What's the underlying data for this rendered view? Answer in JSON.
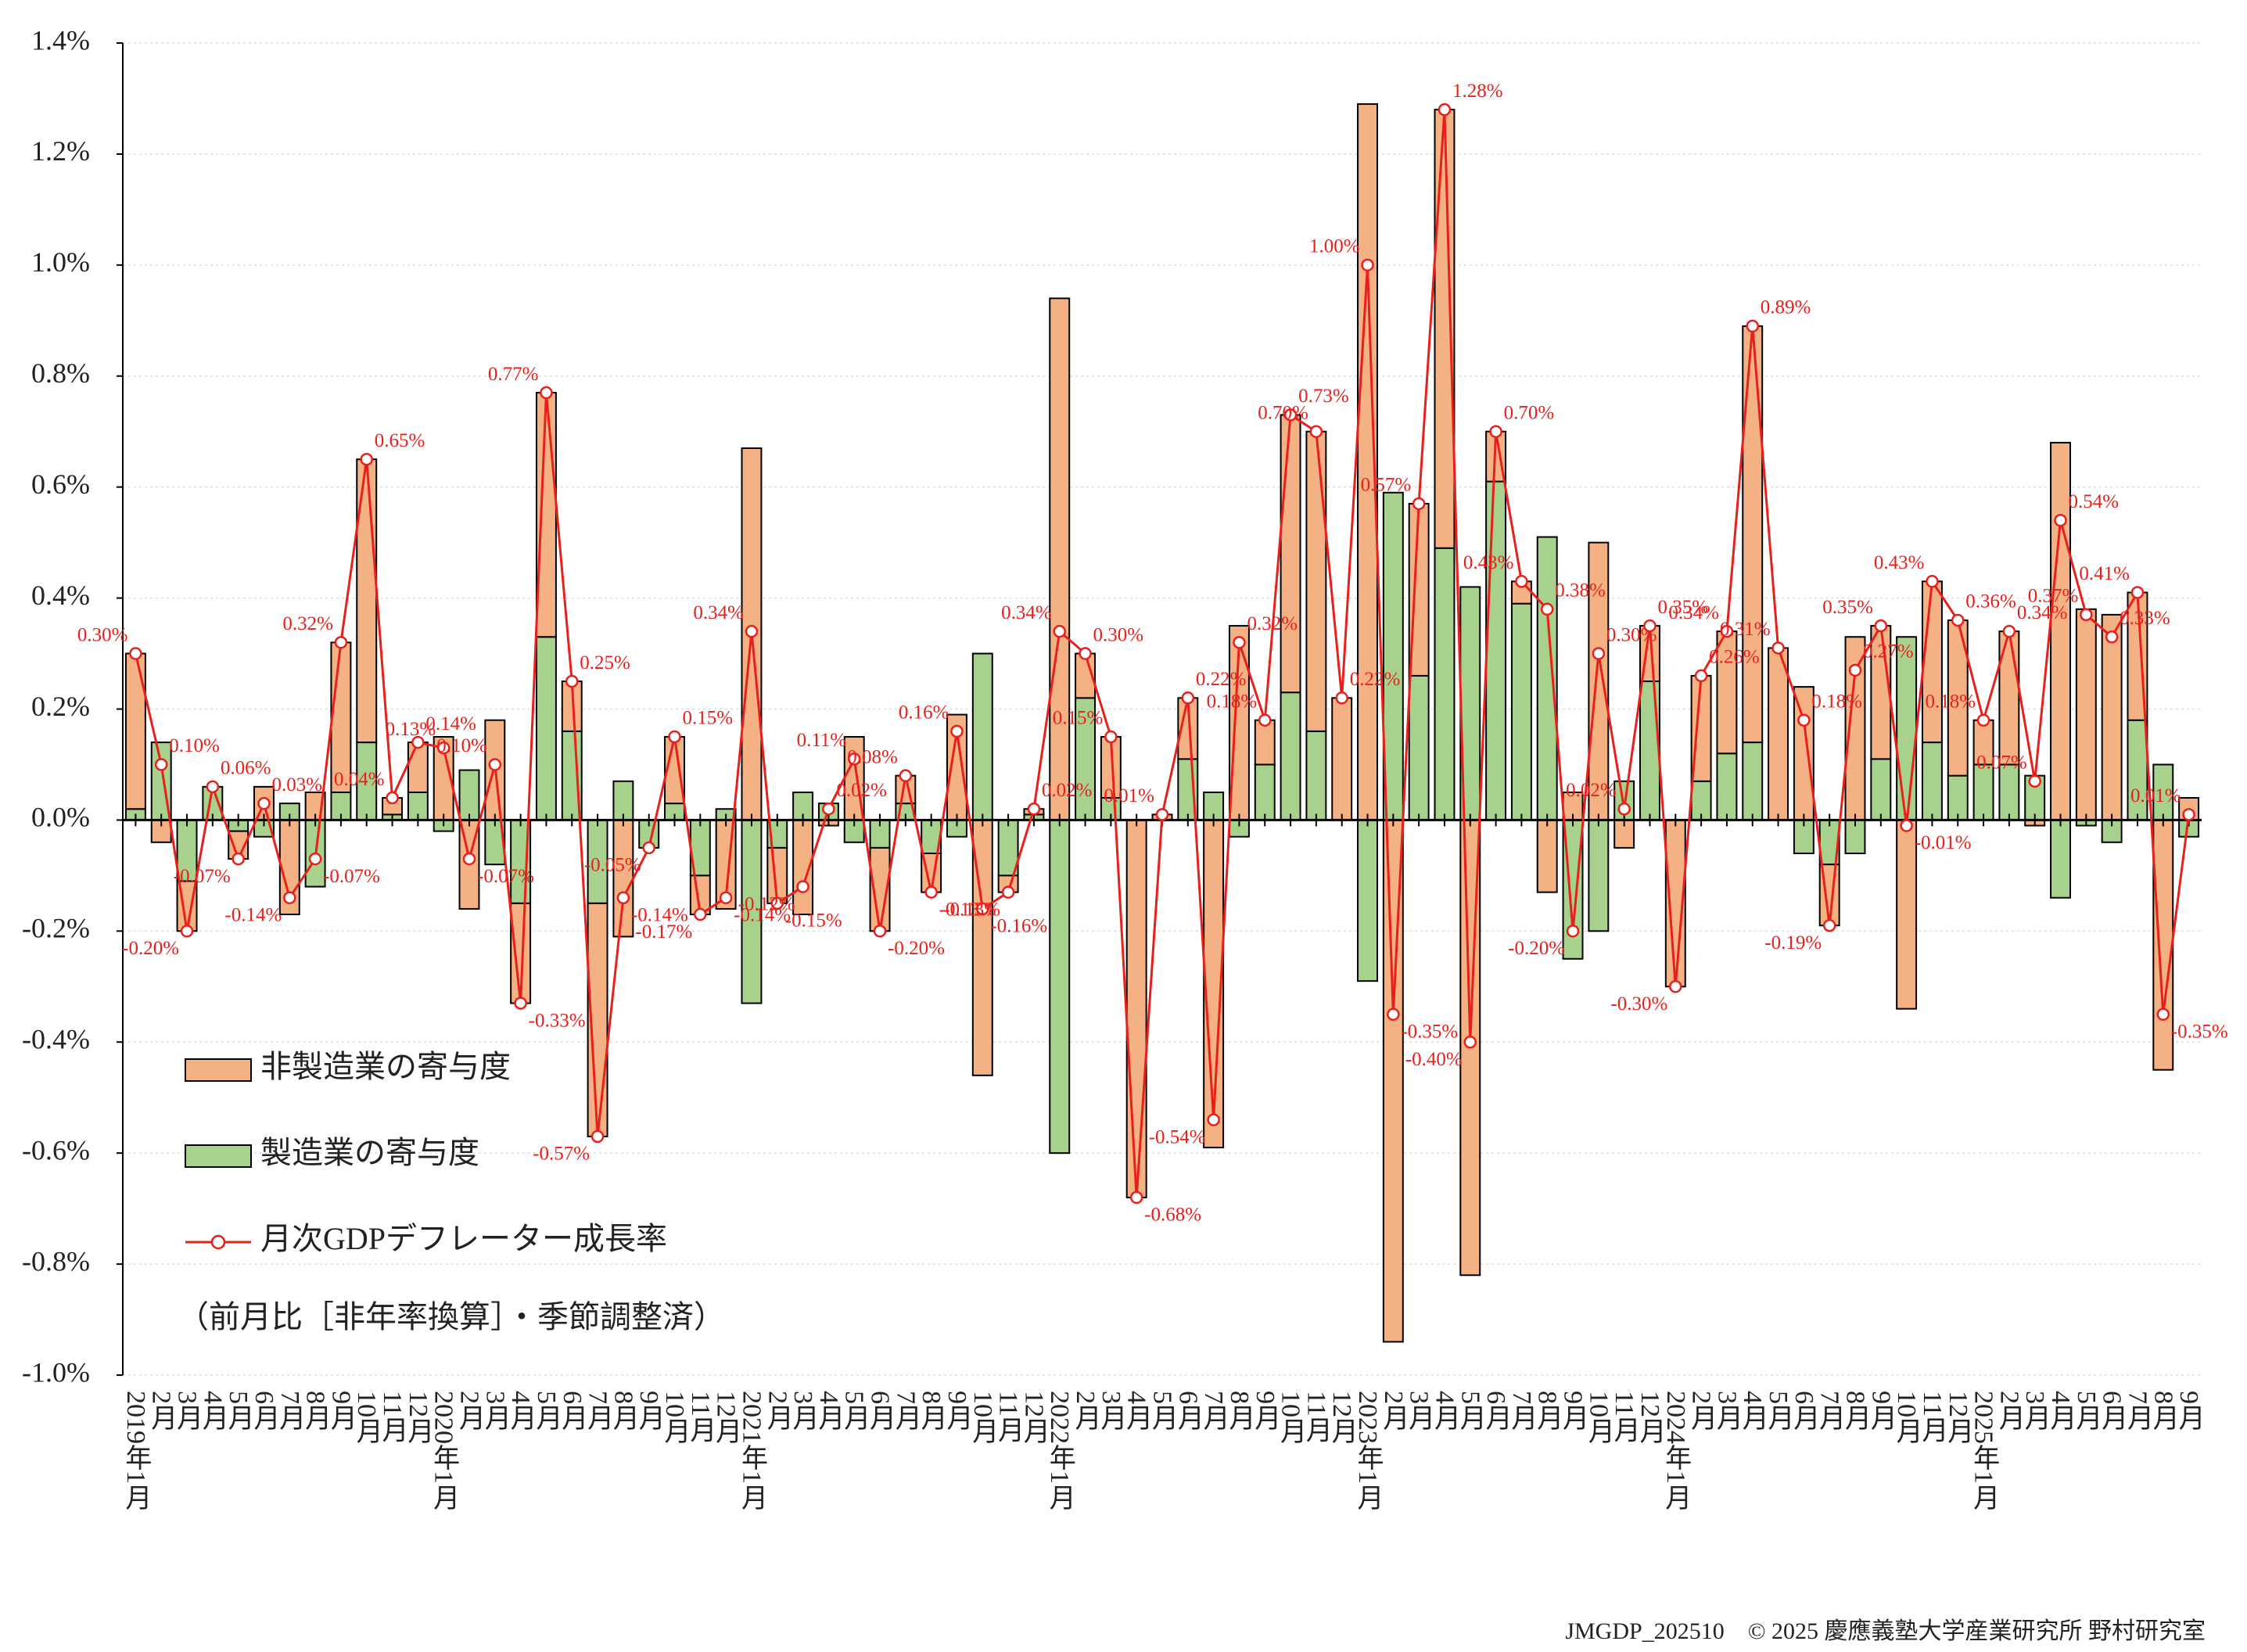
{
  "chart_data": {
    "type": "stacked_bar_line",
    "categories": [
      "2019年1月",
      "2月",
      "3月",
      "4月",
      "5月",
      "6月",
      "7月",
      "8月",
      "9月",
      "10月",
      "11月",
      "12月",
      "2020年1月",
      "2月",
      "3月",
      "4月",
      "5月",
      "6月",
      "7月",
      "8月",
      "9月",
      "10月",
      "11月",
      "12月",
      "2021年1月",
      "2月",
      "3月",
      "4月",
      "5月",
      "6月",
      "7月",
      "8月",
      "9月",
      "10月",
      "11月",
      "12月",
      "2022年1月",
      "2月",
      "3月",
      "4月",
      "5月",
      "6月",
      "7月",
      "8月",
      "9月",
      "10月",
      "11月",
      "12月",
      "2023年1月",
      "2月",
      "3月",
      "4月",
      "5月",
      "6月",
      "7月",
      "8月",
      "9月",
      "10月",
      "11月",
      "12月",
      "2024年1月",
      "2月",
      "3月",
      "4月",
      "5月",
      "6月",
      "7月",
      "8月",
      "9月",
      "10月",
      "11月",
      "12月",
      "2025年1月",
      "2月",
      "3月",
      "4月",
      "5月",
      "6月",
      "7月",
      "8月",
      "9月"
    ],
    "series": [
      {
        "name": "非製造業の寄与度",
        "kind": "bar",
        "color": "#f4b183",
        "values": [
          0.28,
          -0.04,
          -0.09,
          0.0,
          -0.05,
          0.06,
          -0.17,
          0.05,
          0.27,
          0.51,
          0.03,
          0.09,
          0.15,
          -0.16,
          0.18,
          -0.18,
          0.44,
          0.09,
          -0.42,
          -0.21,
          0.0,
          0.12,
          -0.07,
          -0.16,
          0.67,
          -0.1,
          -0.17,
          -0.01,
          0.15,
          -0.15,
          0.05,
          -0.07,
          0.19,
          -0.46,
          -0.03,
          0.01,
          0.94,
          0.08,
          0.11,
          -0.68,
          0.01,
          0.11,
          -0.59,
          0.35,
          0.08,
          0.5,
          0.54,
          0.22,
          1.29,
          -0.94,
          0.31,
          0.79,
          -0.82,
          0.09,
          0.04,
          -0.13,
          0.05,
          0.5,
          -0.05,
          0.1,
          -0.3,
          0.19,
          0.22,
          0.75,
          0.31,
          0.24,
          -0.11,
          0.33,
          0.24,
          -0.34,
          0.29,
          0.28,
          0.08,
          0.24,
          -0.01,
          0.68,
          0.38,
          0.37,
          0.23,
          -0.45,
          0.04
        ]
      },
      {
        "name": "製造業の寄与度",
        "kind": "bar",
        "color": "#a9d18e",
        "values": [
          0.02,
          0.14,
          -0.11,
          0.06,
          -0.02,
          -0.03,
          0.03,
          -0.12,
          0.05,
          0.14,
          0.01,
          0.05,
          -0.02,
          0.09,
          -0.08,
          -0.15,
          0.33,
          0.16,
          -0.15,
          0.07,
          -0.05,
          0.03,
          -0.1,
          0.02,
          -0.33,
          -0.05,
          0.05,
          0.03,
          -0.04,
          -0.05,
          0.03,
          -0.06,
          -0.03,
          0.3,
          -0.1,
          0.01,
          -0.6,
          0.22,
          0.04,
          0.0,
          0.0,
          0.11,
          0.05,
          -0.03,
          0.1,
          0.23,
          0.16,
          0.0,
          -0.29,
          0.59,
          0.26,
          0.49,
          0.42,
          0.61,
          0.39,
          0.51,
          -0.25,
          -0.2,
          0.07,
          0.25,
          0.0,
          0.07,
          0.12,
          0.14,
          0.0,
          -0.06,
          -0.08,
          -0.06,
          0.11,
          0.33,
          0.14,
          0.08,
          0.1,
          0.1,
          0.08,
          -0.14,
          -0.01,
          -0.04,
          0.18,
          0.1,
          -0.03
        ]
      },
      {
        "name": "月次GDPデフレーター成長率",
        "kind": "line",
        "color": "#e8201c",
        "values": [
          0.3,
          0.1,
          -0.2,
          0.06,
          -0.07,
          0.03,
          -0.14,
          -0.07,
          0.32,
          0.65,
          0.04,
          0.14,
          0.13,
          -0.07,
          0.1,
          -0.33,
          0.77,
          0.25,
          -0.57,
          -0.14,
          -0.05,
          0.15,
          -0.17,
          -0.14,
          0.34,
          -0.15,
          -0.12,
          0.02,
          0.11,
          -0.2,
          0.08,
          -0.13,
          0.16,
          -0.16,
          -0.13,
          0.02,
          0.34,
          0.3,
          0.15,
          -0.68,
          0.01,
          0.22,
          -0.54,
          0.32,
          0.18,
          0.73,
          0.7,
          0.22,
          1.0,
          -0.35,
          0.57,
          1.28,
          -0.4,
          0.7,
          0.43,
          0.38,
          -0.2,
          0.3,
          0.02,
          0.35,
          -0.3,
          0.26,
          0.34,
          0.89,
          0.31,
          0.18,
          -0.19,
          0.27,
          0.35,
          -0.01,
          0.43,
          0.36,
          0.18,
          0.34,
          0.07,
          0.54,
          0.37,
          0.33,
          0.41,
          -0.35,
          0.01
        ],
        "value_labels": [
          "0.30%",
          "0.10%",
          "-0.20%",
          "0.06%",
          "-0.07%",
          "0.03%",
          "-0.14%",
          "-0.07%",
          "0.32%",
          "0.65%",
          "0.04%",
          "0.14%",
          "0.13%",
          "-0.07%",
          "0.10%",
          "-0.33%",
          "0.77%",
          "0.25%",
          "-0.57%",
          "-0.14%",
          "-0.05%",
          "0.15%",
          "-0.17%",
          "-0.14%",
          "0.34%",
          "-0.15%",
          "-0.12%",
          "0.02%",
          "0.11%",
          "-0.20%",
          "0.08%",
          "-0.13%",
          "0.16%",
          "-0.16%",
          "-0.13%",
          "0.02%",
          "0.34%",
          "0.30%",
          "0.15%",
          "-0.68%",
          "0.01%",
          "0.22%",
          "-0.54%",
          "0.32%",
          "0.18%",
          "0.73%",
          "0.70%",
          "0.22%",
          "1.00%",
          "-0.35%",
          "0.57%",
          "1.28%",
          "-0.40%",
          "0.70%",
          "0.43%",
          "0.38%",
          "-0.20%",
          "0.30%",
          "0.02%",
          "0.35%",
          "-0.30%",
          "0.26%",
          "0.34%",
          "0.89%",
          "0.31%",
          "0.18%",
          "-0.19%",
          "0.27%",
          "0.35%",
          "-0.01%",
          "0.43%",
          "0.36%",
          "0.18%",
          "0.34%",
          "0.07%",
          "0.54%",
          "0.37%",
          "0.33%",
          "0.41%",
          "-0.35%",
          "0.01%"
        ]
      }
    ],
    "ylim": [
      -1.0,
      1.4
    ],
    "yticks": [
      {
        "value": -1.0,
        "label": "-1.0%"
      },
      {
        "value": -0.8,
        "label": "-0.8%"
      },
      {
        "value": -0.6,
        "label": "-0.6%"
      },
      {
        "value": -0.4,
        "label": "-0.4%"
      },
      {
        "value": -0.2,
        "label": "-0.2%"
      },
      {
        "value": 0,
        "label": "0.0%"
      },
      {
        "value": 0.2,
        "label": "0.2%"
      },
      {
        "value": 0.4,
        "label": "0.4%"
      },
      {
        "value": 0.6,
        "label": "0.6%"
      },
      {
        "value": 0.8,
        "label": "0.8%"
      },
      {
        "value": 1.0,
        "label": "1.0%"
      },
      {
        "value": 1.2,
        "label": "1.2%"
      },
      {
        "value": 1.4,
        "label": "1.4%"
      }
    ],
    "grid": true,
    "legend": "lower left",
    "note": "（前月比［非年率換算］・季節調整済）",
    "footer": "JMGDP_202510　© 2025 慶應義塾大学産業研究所 野村研究室"
  }
}
